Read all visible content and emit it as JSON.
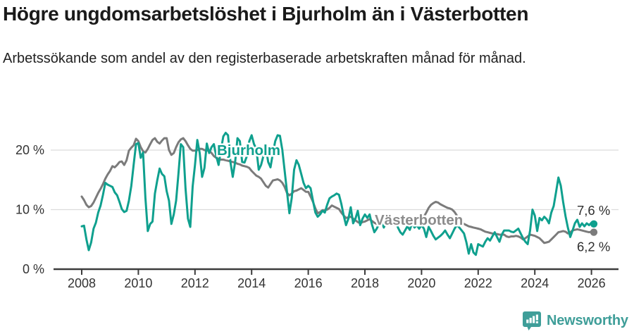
{
  "header": {
    "title": "Högre ungdomsarbetslöshet i Bjurholm än i Västerbotten",
    "subtitle": "Arbetssökande som andel av den registerbaserade arbetskraften månad för månad."
  },
  "chart_data": {
    "type": "line",
    "unit": "percent of registered labour force",
    "x_period": {
      "start": "2008-01",
      "end": "2026-02",
      "interval": "monthly"
    },
    "ylim": [
      0,
      24
    ],
    "grid": "horizontal",
    "legend_position": "inline-labels",
    "y_axis": {
      "ticks": [
        {
          "label": "0 %",
          "value": 0
        },
        {
          "label": "10 %",
          "value": 10
        },
        {
          "label": "20 %",
          "value": 20
        }
      ],
      "gridlines": [
        10,
        20
      ]
    },
    "x_axis": {
      "ticks": [
        {
          "label": "2008",
          "year": 2008
        },
        {
          "label": "2010",
          "year": 2010
        },
        {
          "label": "2012",
          "year": 2012
        },
        {
          "label": "2014",
          "year": 2014
        },
        {
          "label": "2016",
          "year": 2016
        },
        {
          "label": "2018",
          "year": 2018
        },
        {
          "label": "2020",
          "year": 2020
        },
        {
          "label": "2022",
          "year": 2022
        },
        {
          "label": "2024",
          "year": 2024
        },
        {
          "label": "2026",
          "year": 2026
        }
      ]
    },
    "series": [
      {
        "name": "Bjurholm",
        "color": "#0fa08e",
        "label_color": "#0fa08e",
        "end_label": "7,6 %",
        "end_value": 7.6,
        "values": [
          7.2,
          7.3,
          5.0,
          3.2,
          4.5,
          6.8,
          7.8,
          9.5,
          10.7,
          12.5,
          14.5,
          14.2,
          14.0,
          13.8,
          12.9,
          12.4,
          11.3,
          10.1,
          9.6,
          9.8,
          11.5,
          14.0,
          17.5,
          21.0,
          21.2,
          18.7,
          19.6,
          12.0,
          6.4,
          7.6,
          8.0,
          12.7,
          14.9,
          16.9,
          16.0,
          15.6,
          13.1,
          11.5,
          7.6,
          9.2,
          11.5,
          16.0,
          21.0,
          20.5,
          13.5,
          8.5,
          7.1,
          13.9,
          17.5,
          21.7,
          19.5,
          15.5,
          17.0,
          21.1,
          19.5,
          20.5,
          21.0,
          19.0,
          17.5,
          20.0,
          22.3,
          22.9,
          22.5,
          18.0,
          15.5,
          18.0,
          22.0,
          21.5,
          18.0,
          17.9,
          19.0,
          21.5,
          22.5,
          21.0,
          20.2,
          16.7,
          17.5,
          19.0,
          20.5,
          18.0,
          17.1,
          19.5,
          21.5,
          22.5,
          22.4,
          20.0,
          16.5,
          13.0,
          9.4,
          12.0,
          16.7,
          18.3,
          17.5,
          16.0,
          14.5,
          13.6,
          14.0,
          13.6,
          11.5,
          9.5,
          8.8,
          9.2,
          9.8,
          9.5,
          10.8,
          11.9,
          12.2,
          12.4,
          12.7,
          12.5,
          11.0,
          9.0,
          7.4,
          8.5,
          10.4,
          7.7,
          8.5,
          9.8,
          7.4,
          8.5,
          9.2,
          8.6,
          9.2,
          7.5,
          6.2,
          6.8,
          7.6,
          8.2,
          7.0,
          7.8,
          8.6,
          8.0,
          7.5,
          8.2,
          7.0,
          6.2,
          5.8,
          6.5,
          7.2,
          6.6,
          7.7,
          7.0,
          7.4,
          6.8,
          7.4,
          6.8,
          5.4,
          7.1,
          6.4,
          5.6,
          5.0,
          5.3,
          5.6,
          6.0,
          6.5,
          5.8,
          5.2,
          6.0,
          6.8,
          7.4,
          7.0,
          6.5,
          6.0,
          4.5,
          2.6,
          4.2,
          2.8,
          2.4,
          4.2,
          4.0,
          3.8,
          4.6,
          5.2,
          4.8,
          5.5,
          6.2,
          5.4,
          4.6,
          5.8,
          6.5,
          6.5,
          6.5,
          6.3,
          6.2,
          6.5,
          6.8,
          6.0,
          5.2,
          4.6,
          4.2,
          6.5,
          10.0,
          9.0,
          6.4,
          8.6,
          8.2,
          8.8,
          8.4,
          7.7,
          9.5,
          10.6,
          13.0,
          15.4,
          14.0,
          11.3,
          8.9,
          7.0,
          5.4,
          6.5,
          7.7,
          8.3,
          7.1,
          7.7,
          7.2,
          7.7,
          7.4,
          7.8,
          7.6
        ]
      },
      {
        "name": "Västerbotten",
        "color": "#7b7b7b",
        "label_color": "#8c8c8c",
        "end_label": "6,2 %",
        "end_value": 6.2,
        "values": [
          12.2,
          11.6,
          10.8,
          10.4,
          10.6,
          11.2,
          12.0,
          12.8,
          13.5,
          14.3,
          15.2,
          15.9,
          16.5,
          17.3,
          17.1,
          17.5,
          18.0,
          18.1,
          17.5,
          18.3,
          19.9,
          20.4,
          20.8,
          21.9,
          21.5,
          20.5,
          19.8,
          19.6,
          20.2,
          21.0,
          21.7,
          22.0,
          21.4,
          21.1,
          21.6,
          22.0,
          22.0,
          20.0,
          19.2,
          19.5,
          20.5,
          21.3,
          21.8,
          22.0,
          21.5,
          20.8,
          20.2,
          19.9,
          19.9,
          20.0,
          20.2,
          20.2,
          20.0,
          19.9,
          19.9,
          19.5,
          19.0,
          18.7,
          18.5,
          18.4,
          18.4,
          18.3,
          18.2,
          18.1,
          18.0,
          17.9,
          17.7,
          17.6,
          17.4,
          17.3,
          17.2,
          17.0,
          16.5,
          16.1,
          15.7,
          15.5,
          15.2,
          14.6,
          14.0,
          13.7,
          14.3,
          14.9,
          15.0,
          15.1,
          14.9,
          14.5,
          13.8,
          12.8,
          12.4,
          12.7,
          13.1,
          13.2,
          13.4,
          13.6,
          13.3,
          13.0,
          13.0,
          12.2,
          11.3,
          10.2,
          9.4,
          9.6,
          9.9,
          9.9,
          10.0,
          10.3,
          10.7,
          10.5,
          10.3,
          10.1,
          9.5,
          9.0,
          8.6,
          8.7,
          8.8,
          8.5,
          8.2,
          7.9,
          7.7,
          7.9,
          8.0,
          8.2,
          8.4,
          8.1,
          7.8,
          7.6,
          7.5,
          7.7,
          7.9,
          8.1,
          8.0,
          7.8,
          7.7,
          7.6,
          7.8,
          8.0,
          7.9,
          7.7,
          7.8,
          8.0,
          8.2,
          8.4,
          8.3,
          8.5,
          8.6,
          8.8,
          9.5,
          10.3,
          10.8,
          11.1,
          11.3,
          11.2,
          10.9,
          10.7,
          10.5,
          10.3,
          10.2,
          10.0,
          9.6,
          9.0,
          8.4,
          7.9,
          7.6,
          7.4,
          7.2,
          7.1,
          7.0,
          6.9,
          6.8,
          6.7,
          6.5,
          6.3,
          6.2,
          6.1,
          6.0,
          5.9,
          5.9,
          5.8,
          5.8,
          5.8,
          5.5,
          5.4,
          5.5,
          5.5,
          5.6,
          5.5,
          5.3,
          5.0,
          5.2,
          5.5,
          5.8,
          5.7,
          5.6,
          5.4,
          5.2,
          4.8,
          4.4,
          4.5,
          4.6,
          5.0,
          5.4,
          5.8,
          6.2,
          6.3,
          6.4,
          6.3,
          6.0,
          6.2,
          6.5,
          6.6,
          6.7,
          6.6,
          6.5,
          6.4,
          6.3,
          6.2,
          6.3,
          6.2
        ]
      }
    ],
    "colors": {
      "axis": "#3c3c3c",
      "gridline": "#dcdcdc",
      "tick_text": "#333333",
      "annotation_text": "#2e2e2e",
      "brand_teal": "#3f9e99"
    }
  },
  "footer": {
    "brand": "Newsworthy"
  }
}
